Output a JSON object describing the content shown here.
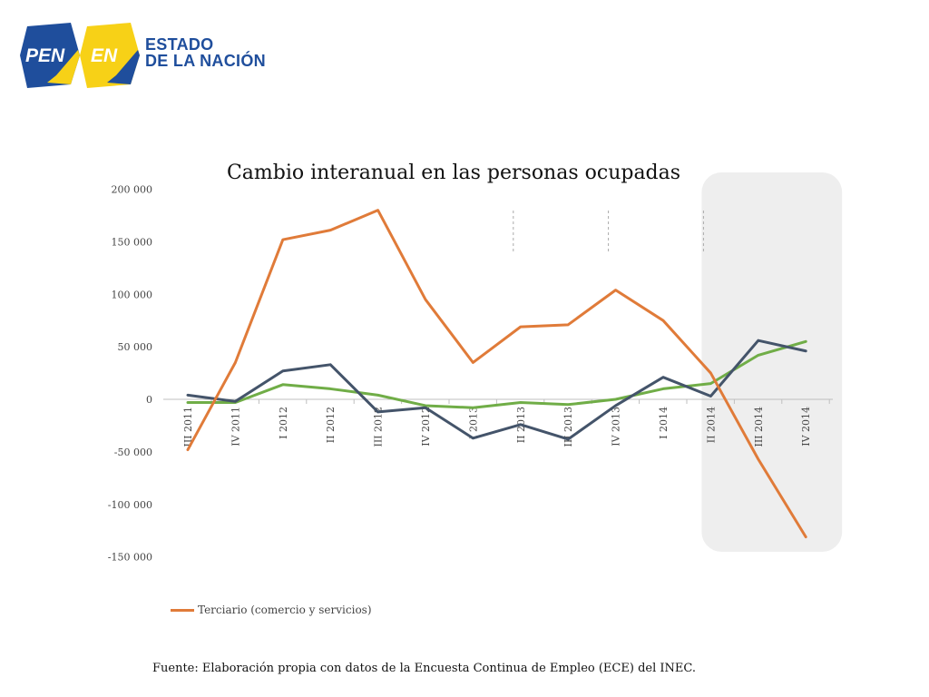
{
  "logo": {
    "badge_left": "PEN",
    "badge_right": "EN",
    "line1": "ESTADO",
    "line2": "DE LA NACIÓN",
    "colors": {
      "blue": "#1f4e9c",
      "yellow": "#f7d117"
    }
  },
  "source_note": "Fuente: Elaboración propia con datos de la Encuesta Continua de Empleo (ECE) del INEC.",
  "chart_data": {
    "type": "line",
    "title": "Cambio interanual en las personas ocupadas",
    "xlabel": "",
    "ylabel": "",
    "ylim": [
      -150000,
      200000
    ],
    "yticks": [
      200000,
      150000,
      100000,
      50000,
      0,
      -50000,
      -100000,
      -150000
    ],
    "ytick_labels": [
      "200 000",
      "150 000",
      "100 000",
      "50 000",
      "0",
      "-50 000",
      "-100 000",
      "-150 000"
    ],
    "categories": [
      "III 2011",
      "IV 2011",
      "I 2012",
      "II 2012",
      "III 2012",
      "IV 2012",
      "I 2013",
      "II 2013",
      "III 2013",
      "IV 2013",
      "I 2014",
      "II 2014",
      "III 2014",
      "IV 2014"
    ],
    "series": [
      {
        "name": "Terciario (comercio y servicios)",
        "color": "#e07b39",
        "values": [
          -48000,
          35000,
          152000,
          161000,
          180000,
          95000,
          35000,
          69000,
          71000,
          104000,
          75000,
          25000,
          -57000,
          -131000
        ]
      },
      {
        "name": "",
        "color": "#44546a",
        "values": [
          4000,
          -2000,
          27000,
          33000,
          -12000,
          -8000,
          -37000,
          -24000,
          -38000,
          -6000,
          21000,
          3000,
          56000,
          46000
        ]
      },
      {
        "name": "",
        "color": "#70ad47",
        "values": [
          -3000,
          -3000,
          14000,
          10000,
          4000,
          -6000,
          -8000,
          -3000,
          -5000,
          0,
          10000,
          15000,
          42000,
          55000
        ]
      }
    ],
    "legend_position": "bottom-left",
    "grid": false,
    "highlight_region": {
      "from": "II 2014",
      "to": "IV 2014",
      "color": "#eeeeee"
    },
    "dashed_markers_after": [
      "II 2013",
      "IV 2013",
      "II 2014"
    ]
  }
}
